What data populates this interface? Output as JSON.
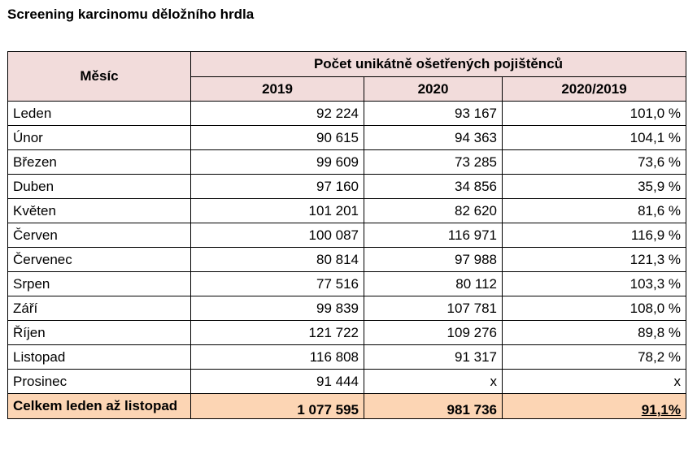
{
  "title": "Screening karcinomu děložního hrdla",
  "table": {
    "month_header": "Měsíc",
    "group_header": "Počet unikátně ošetřených pojištěnců",
    "columns": [
      "2019",
      "2020",
      "2020/2019"
    ],
    "rows": [
      {
        "month": "Leden",
        "y2019": "92 224",
        "y2020": "93 167",
        "ratio": "101,0 %"
      },
      {
        "month": "Únor",
        "y2019": "90 615",
        "y2020": "94 363",
        "ratio": "104,1 %"
      },
      {
        "month": "Březen",
        "y2019": "99 609",
        "y2020": "73 285",
        "ratio": "73,6 %"
      },
      {
        "month": "Duben",
        "y2019": "97 160",
        "y2020": "34 856",
        "ratio": "35,9 %"
      },
      {
        "month": "Květen",
        "y2019": "101 201",
        "y2020": "82 620",
        "ratio": "81,6 %"
      },
      {
        "month": "Červen",
        "y2019": "100 087",
        "y2020": "116 971",
        "ratio": "116,9 %"
      },
      {
        "month": "Červenec",
        "y2019": "80 814",
        "y2020": "97 988",
        "ratio": "121,3 %"
      },
      {
        "month": "Srpen",
        "y2019": "77 516",
        "y2020": "80 112",
        "ratio": "103,3 %"
      },
      {
        "month": "Září",
        "y2019": "99 839",
        "y2020": "107 781",
        "ratio": "108,0 %"
      },
      {
        "month": "Říjen",
        "y2019": "121 722",
        "y2020": "109 276",
        "ratio": "89,8 %"
      },
      {
        "month": "Listopad",
        "y2019": "116 808",
        "y2020": "91 317",
        "ratio": "78,2 %"
      },
      {
        "month": "Prosinec",
        "y2019": "91 444",
        "y2020": "x",
        "ratio": "x"
      }
    ],
    "total": {
      "label": "Celkem leden až listopad",
      "y2019": "1 077 595",
      "y2020": "981 736",
      "ratio": "91,1%"
    }
  },
  "colors": {
    "header_bg": "#f2dcdb",
    "total_bg": "#fcd5b4"
  }
}
